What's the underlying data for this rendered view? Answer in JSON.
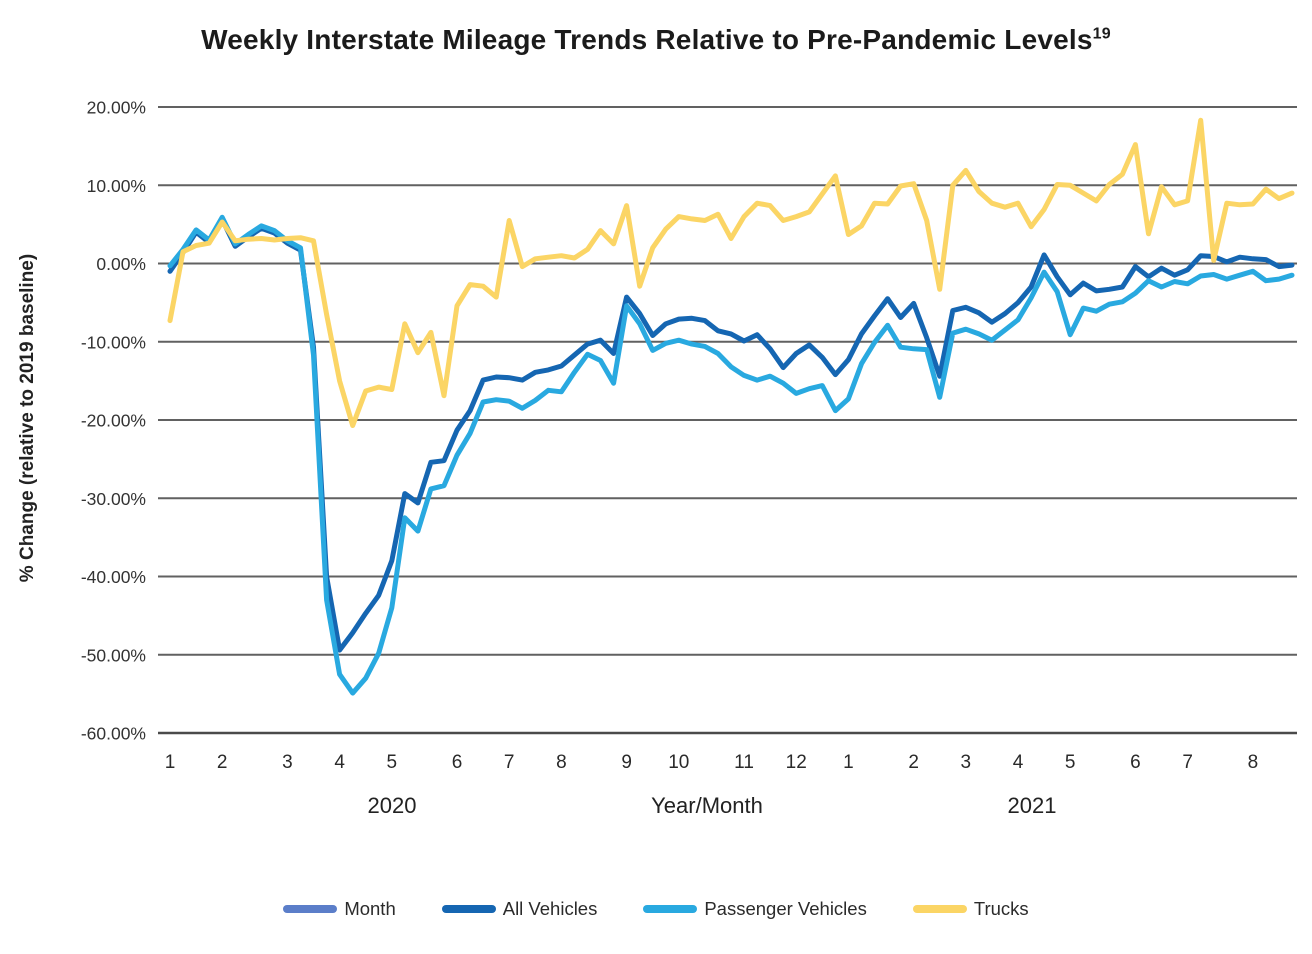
{
  "title": {
    "text": "Weekly Interstate Mileage Trends Relative to Pre-Pandemic Levels",
    "superscript": "19"
  },
  "chart_data": {
    "type": "line",
    "title": "Weekly Interstate Mileage Trends Relative to Pre-Pandemic Levels",
    "footnote_marker": "19",
    "xlabel": "Year/Month",
    "ylabel": "% Change (relative to 2019 baseline)",
    "x_year_labels": [
      "2020",
      "2021"
    ],
    "x_unit": "week",
    "weeks_total": 87,
    "ylim": [
      -60,
      20
    ],
    "yticks": [
      20,
      10,
      0,
      -10,
      -20,
      -30,
      -40,
      -50,
      -60
    ],
    "ytick_labels": [
      "20.00%",
      "10.00%",
      "0.00%",
      "-10.00%",
      "-20.00%",
      "-30.00%",
      "-40.00%",
      "-50.00%",
      "-60.00%"
    ],
    "grid": true,
    "grid_color": "#616161",
    "axis_line_color": "#4a4a4a",
    "legend_position": "bottom",
    "month_ticks": [
      {
        "label": "1",
        "week": 1
      },
      {
        "label": "2",
        "week": 5
      },
      {
        "label": "3",
        "week": 10
      },
      {
        "label": "4",
        "week": 14
      },
      {
        "label": "5",
        "week": 18
      },
      {
        "label": "6",
        "week": 23
      },
      {
        "label": "7",
        "week": 27
      },
      {
        "label": "8",
        "week": 31
      },
      {
        "label": "9",
        "week": 36
      },
      {
        "label": "10",
        "week": 40
      },
      {
        "label": "11",
        "week": 45
      },
      {
        "label": "12",
        "week": 49
      },
      {
        "label": "1",
        "week": 53
      },
      {
        "label": "2",
        "week": 58
      },
      {
        "label": "3",
        "week": 62
      },
      {
        "label": "4",
        "week": 66
      },
      {
        "label": "5",
        "week": 70
      },
      {
        "label": "6",
        "week": 75
      },
      {
        "label": "7",
        "week": 79
      },
      {
        "label": "8",
        "week": 84
      }
    ],
    "series": [
      {
        "name": "Month",
        "color": "#5B7EC9",
        "values": []
      },
      {
        "name": "All Vehicles",
        "color": "#1566B2",
        "values": [
          -1.0,
          1.4,
          4.0,
          2.7,
          5.6,
          2.2,
          3.4,
          4.5,
          3.9,
          2.6,
          1.7,
          -10.7,
          -40.0,
          -49.4,
          -47.2,
          -44.7,
          -42.4,
          -38.0,
          -29.4,
          -30.6,
          -25.4,
          -25.2,
          -21.3,
          -18.8,
          -14.9,
          -14.5,
          -14.6,
          -14.9,
          -13.9,
          -13.6,
          -13.1,
          -11.7,
          -10.3,
          -9.8,
          -11.5,
          -4.3,
          -6.4,
          -9.2,
          -7.7,
          -7.1,
          -7.0,
          -7.3,
          -8.6,
          -9.0,
          -9.9,
          -9.1,
          -10.9,
          -13.3,
          -11.5,
          -10.4,
          -12.0,
          -14.2,
          -12.3,
          -9.0,
          -6.7,
          -4.5,
          -6.9,
          -5.1,
          -9.5,
          -14.4,
          -6.0,
          -5.6,
          -6.3,
          -7.5,
          -6.4,
          -5.0,
          -3.0,
          1.1,
          -1.7,
          -4.0,
          -2.5,
          -3.5,
          -3.3,
          -3.0,
          -0.4,
          -1.7,
          -0.6,
          -1.5,
          -0.8,
          1.0,
          0.9,
          0.2,
          0.8,
          0.6,
          0.5,
          -0.4,
          -0.2
        ]
      },
      {
        "name": "Passenger Vehicles",
        "color": "#29A9E0",
        "values": [
          -0.3,
          1.8,
          4.3,
          3.0,
          5.9,
          2.5,
          3.7,
          4.8,
          4.2,
          2.9,
          2.0,
          -11.7,
          -43.0,
          -52.5,
          -54.9,
          -53.0,
          -49.8,
          -44.0,
          -32.5,
          -34.2,
          -28.8,
          -28.4,
          -24.5,
          -21.7,
          -17.7,
          -17.4,
          -17.6,
          -18.5,
          -17.5,
          -16.2,
          -16.4,
          -13.9,
          -11.6,
          -12.4,
          -15.3,
          -5.4,
          -7.7,
          -11.1,
          -10.2,
          -9.8,
          -10.3,
          -10.6,
          -11.5,
          -13.2,
          -14.3,
          -14.9,
          -14.4,
          -15.3,
          -16.6,
          -16.0,
          -15.6,
          -18.8,
          -17.3,
          -12.8,
          -10.1,
          -7.9,
          -10.7,
          -10.9,
          -11.0,
          -17.1,
          -8.9,
          -8.4,
          -9.0,
          -9.8,
          -8.5,
          -7.2,
          -4.4,
          -1.1,
          -3.6,
          -9.1,
          -5.7,
          -6.1,
          -5.2,
          -4.9,
          -3.8,
          -2.2,
          -3.0,
          -2.3,
          -2.6,
          -1.6,
          -1.4,
          -2.0,
          -1.5,
          -1.0,
          -2.2,
          -2.0,
          -1.5
        ]
      },
      {
        "name": "Trucks",
        "color": "#FBD565",
        "values": [
          -7.3,
          1.5,
          2.3,
          2.6,
          5.3,
          2.9,
          3.1,
          3.2,
          3.0,
          3.2,
          3.3,
          2.9,
          -6.5,
          -15.0,
          -20.7,
          -16.3,
          -15.8,
          -16.1,
          -7.7,
          -11.4,
          -8.8,
          -16.9,
          -5.4,
          -2.7,
          -2.9,
          -4.3,
          5.5,
          -0.4,
          0.6,
          0.8,
          1.0,
          0.7,
          1.8,
          4.2,
          2.5,
          7.4,
          -2.9,
          2.0,
          4.4,
          6.0,
          5.7,
          5.5,
          6.3,
          3.2,
          6.0,
          7.7,
          7.4,
          5.5,
          6.0,
          6.6,
          8.9,
          11.2,
          3.7,
          4.8,
          7.7,
          7.6,
          9.9,
          10.2,
          5.5,
          -3.3,
          10.0,
          11.9,
          9.2,
          7.7,
          7.2,
          7.7,
          4.7,
          6.9,
          10.1,
          10.0,
          9.0,
          8.0,
          10.1,
          11.4,
          15.2,
          3.8,
          9.8,
          7.5,
          8.0,
          18.3,
          0.4,
          7.7,
          7.5,
          7.6,
          9.5,
          8.3,
          9.0
        ]
      }
    ]
  }
}
